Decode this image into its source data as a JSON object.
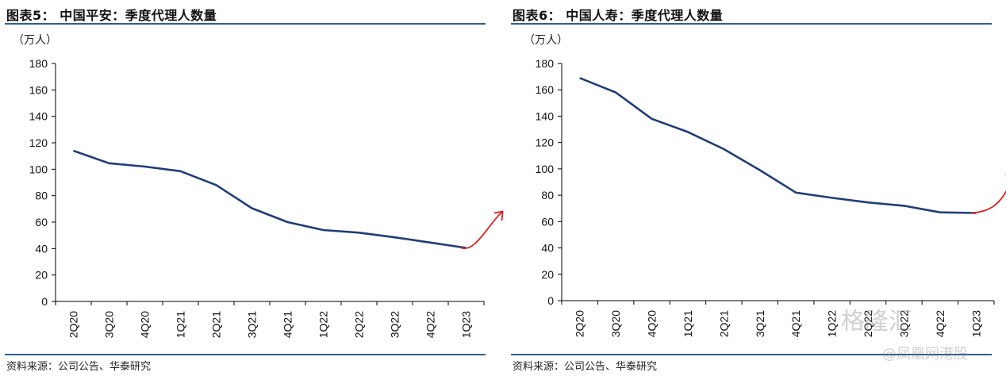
{
  "colors": {
    "line": "#1f3d7a",
    "annotation": "#e0201b",
    "rule": "#2f5f8f"
  },
  "left_panel": {
    "title": "图表5：  中国平安：季度代理人数量",
    "unit": "（万人）",
    "source": "资料来源：公司公告、华泰研究",
    "chart_data": {
      "type": "line",
      "x": [
        "2Q20",
        "3Q20",
        "4Q20",
        "1Q21",
        "2Q21",
        "3Q21",
        "4Q21",
        "1Q22",
        "2Q22",
        "3Q22",
        "4Q22",
        "1Q23"
      ],
      "values": [
        114,
        104.5,
        102,
        98.5,
        88,
        70.5,
        60,
        54,
        52,
        48.5,
        44.5,
        40.5
      ],
      "ylim": [
        0,
        180
      ],
      "yticks": [
        0,
        20,
        40,
        60,
        80,
        100,
        120,
        140,
        160,
        180
      ],
      "ylabel": "（万人）",
      "grid": false
    }
  },
  "right_panel": {
    "title": "图表6：  中国人寿：季度代理人数量",
    "unit": "（万人）",
    "source": "资料来源：公司公告、华泰研究",
    "chart_data": {
      "type": "line",
      "x": [
        "2Q20",
        "3Q20",
        "4Q20",
        "1Q21",
        "2Q21",
        "3Q21",
        "4Q21",
        "1Q22",
        "2Q22",
        "3Q22",
        "4Q22",
        "1Q23"
      ],
      "values": [
        169,
        158,
        138,
        128,
        115,
        99,
        82,
        78,
        74.5,
        72,
        67,
        66.5
      ],
      "ylim": [
        0,
        180
      ],
      "yticks": [
        0,
        20,
        40,
        60,
        80,
        100,
        120,
        140,
        160,
        180
      ],
      "ylabel": "（万人）",
      "grid": false
    }
  },
  "watermark": {
    "line1": "格隆汇",
    "line2": "@凤凰网港股"
  }
}
